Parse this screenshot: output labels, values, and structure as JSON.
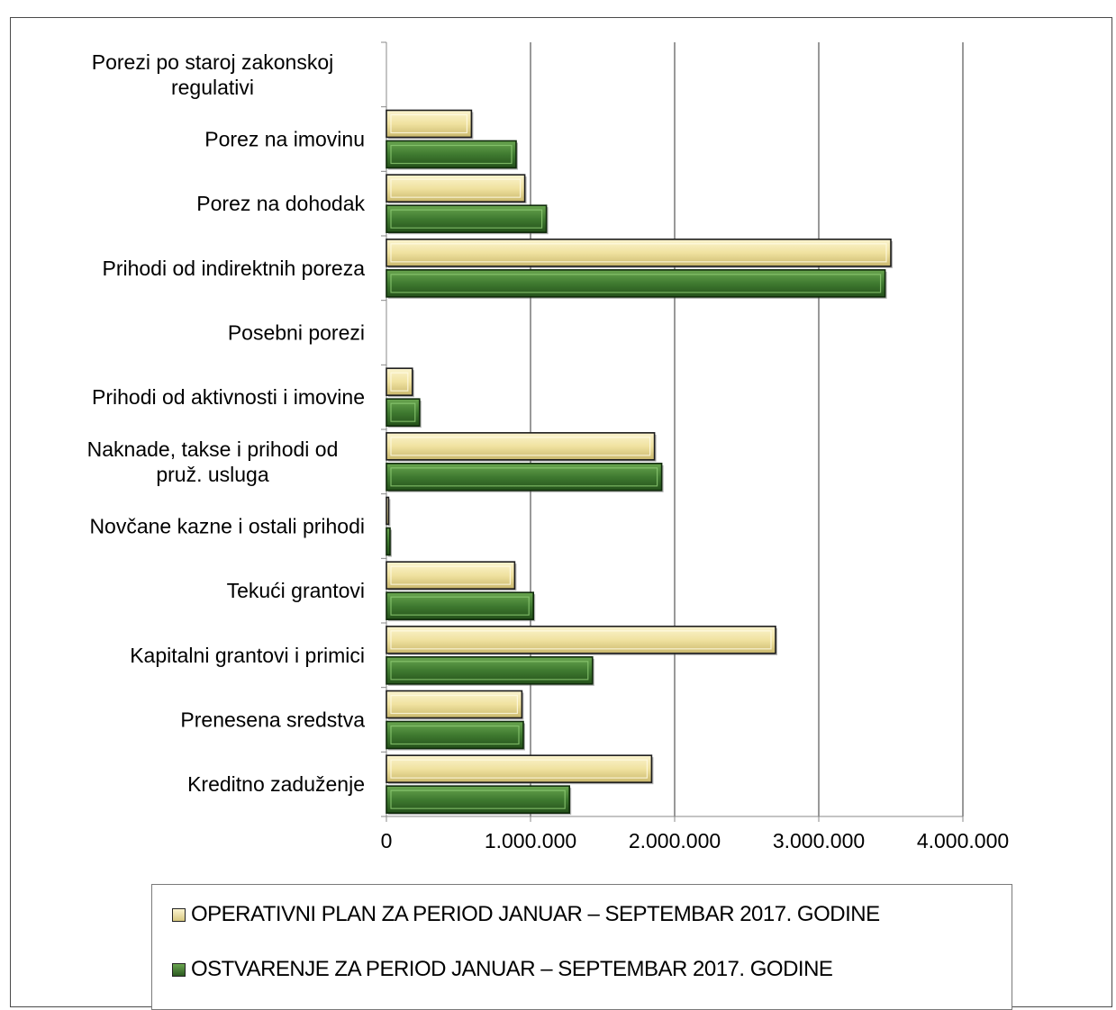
{
  "chart_data": {
    "type": "bar",
    "orientation": "horizontal",
    "categories": [
      "Porezi po staroj zakonskoj regulativi",
      "Porez na imovinu",
      "Porez na dohodak",
      "Prihodi od indirektnih poreza",
      "Posebni porezi",
      "Prihodi od aktivnosti i imovine",
      "Naknade, takse i prihodi od pruž. usluga",
      "Novčane kazne i ostali prihodi",
      "Tekući grantovi",
      "Kapitalni grantovi i primici",
      "Prenesena sredstva",
      "Kreditno zaduženje"
    ],
    "category_lines": [
      [
        "Porezi po staroj zakonskoj",
        "regulativi"
      ],
      [
        "Porez na imovinu"
      ],
      [
        "Porez na dohodak"
      ],
      [
        "Prihodi od indirektnih poreza"
      ],
      [
        "Posebni porezi"
      ],
      [
        "Prihodi od aktivnosti i imovine"
      ],
      [
        "Naknade, takse i prihodi od",
        "pruž. usluga"
      ],
      [
        "Novčane kazne i ostali prihodi"
      ],
      [
        "Tekući grantovi"
      ],
      [
        "Kapitalni grantovi i primici"
      ],
      [
        "Prenesena sredstva"
      ],
      [
        "Kreditno zaduženje"
      ]
    ],
    "series": [
      {
        "name": "OPERATIVNI PLAN ZA PERIOD JANUAR – SEPTEMBAR 2017. GODINE",
        "color": "#efe3a2",
        "values": [
          0,
          590000,
          960000,
          3500000,
          0,
          180000,
          1860000,
          15000,
          890000,
          2700000,
          940000,
          1840000
        ]
      },
      {
        "name": "OSTVARENJE ZA PERIOD JANUAR – SEPTEMBAR 2017. GODINE",
        "color": "#3f7a30",
        "values": [
          0,
          900000,
          1110000,
          3460000,
          0,
          230000,
          1910000,
          25000,
          1020000,
          1430000,
          950000,
          1270000
        ]
      }
    ],
    "xlim": [
      0,
      4000000
    ],
    "x_ticks": [
      0,
      1000000,
      2000000,
      3000000,
      4000000
    ],
    "x_tick_labels": [
      "0",
      "1.000.000",
      "2.000.000",
      "3.000.000",
      "4.000.000"
    ],
    "grid": "vertical",
    "legend_position": "bottom"
  }
}
